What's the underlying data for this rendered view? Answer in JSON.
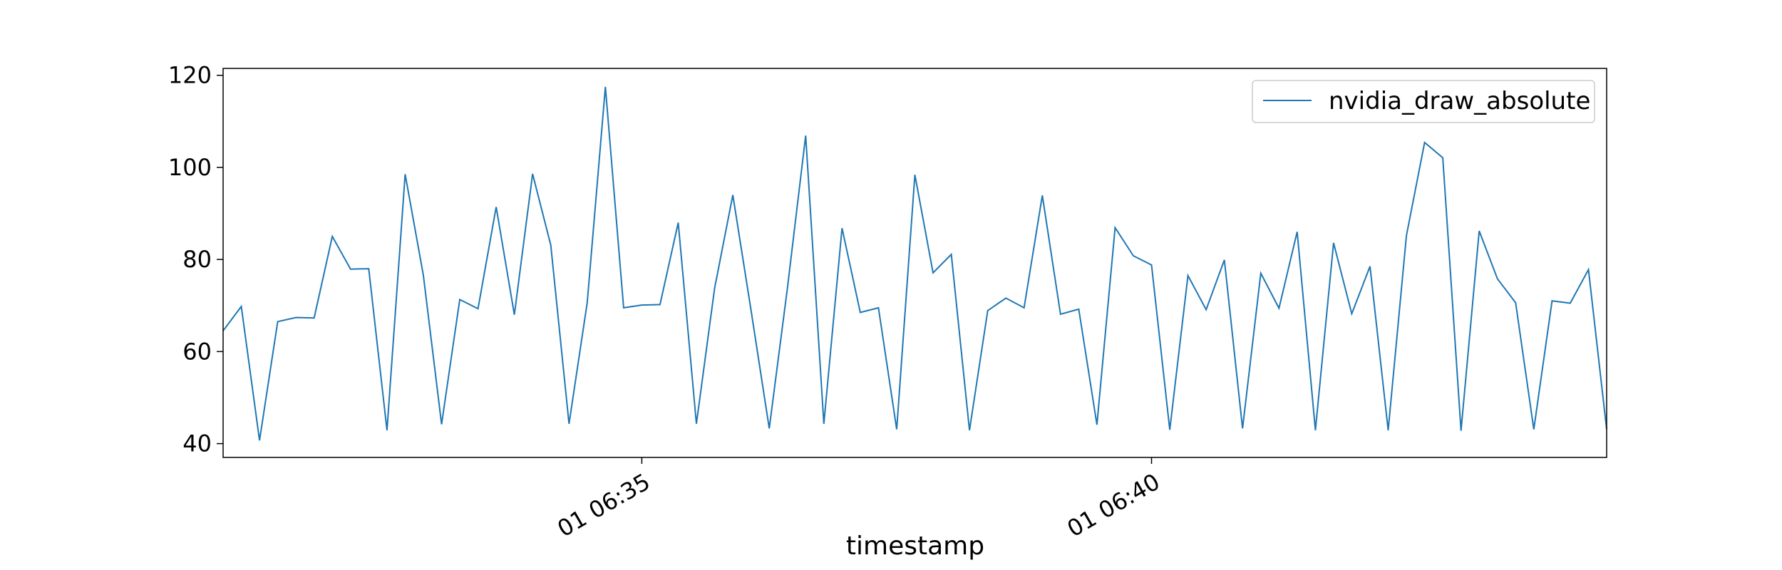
{
  "chart_data": {
    "type": "line",
    "xlabel": "timestamp",
    "ylabel": "",
    "ylim": [
      37.0,
      121.5
    ],
    "y_ticks": [
      40,
      60,
      80,
      100,
      120
    ],
    "x_ticks": [
      {
        "index": 23,
        "label": "01 06:35"
      },
      {
        "index": 51,
        "label": "01 06:40"
      }
    ],
    "legend": {
      "position": "top-right"
    },
    "grid": false,
    "series": [
      {
        "name": "nvidia_draw_absolute",
        "color": "#1f77b4",
        "values": [
          64.5,
          69.8,
          40.7,
          66.5,
          67.4,
          67.3,
          85.0,
          77.9,
          78.0,
          42.9,
          98.5,
          76.6,
          44.2,
          71.3,
          69.3,
          91.4,
          68.0,
          98.6,
          83.1,
          44.3,
          70.6,
          117.5,
          69.5,
          70.1,
          70.2,
          88.0,
          44.3,
          73.8,
          94.0,
          69.0,
          43.3,
          73.8,
          106.9,
          44.3,
          86.8,
          68.5,
          69.5,
          43.1,
          98.4,
          77.1,
          81.1,
          42.9,
          68.9,
          71.6,
          69.5,
          93.9,
          68.1,
          69.2,
          44.1,
          86.9,
          80.8,
          78.8,
          43.0,
          76.5,
          69.1,
          79.9,
          43.3,
          77.0,
          69.4,
          86.0,
          42.9,
          83.6,
          68.2,
          78.5,
          42.9,
          85.2,
          105.4,
          102.1,
          42.8,
          86.2,
          75.8,
          70.6,
          43.1,
          71.0,
          70.5,
          77.8,
          43.1
        ]
      }
    ]
  }
}
